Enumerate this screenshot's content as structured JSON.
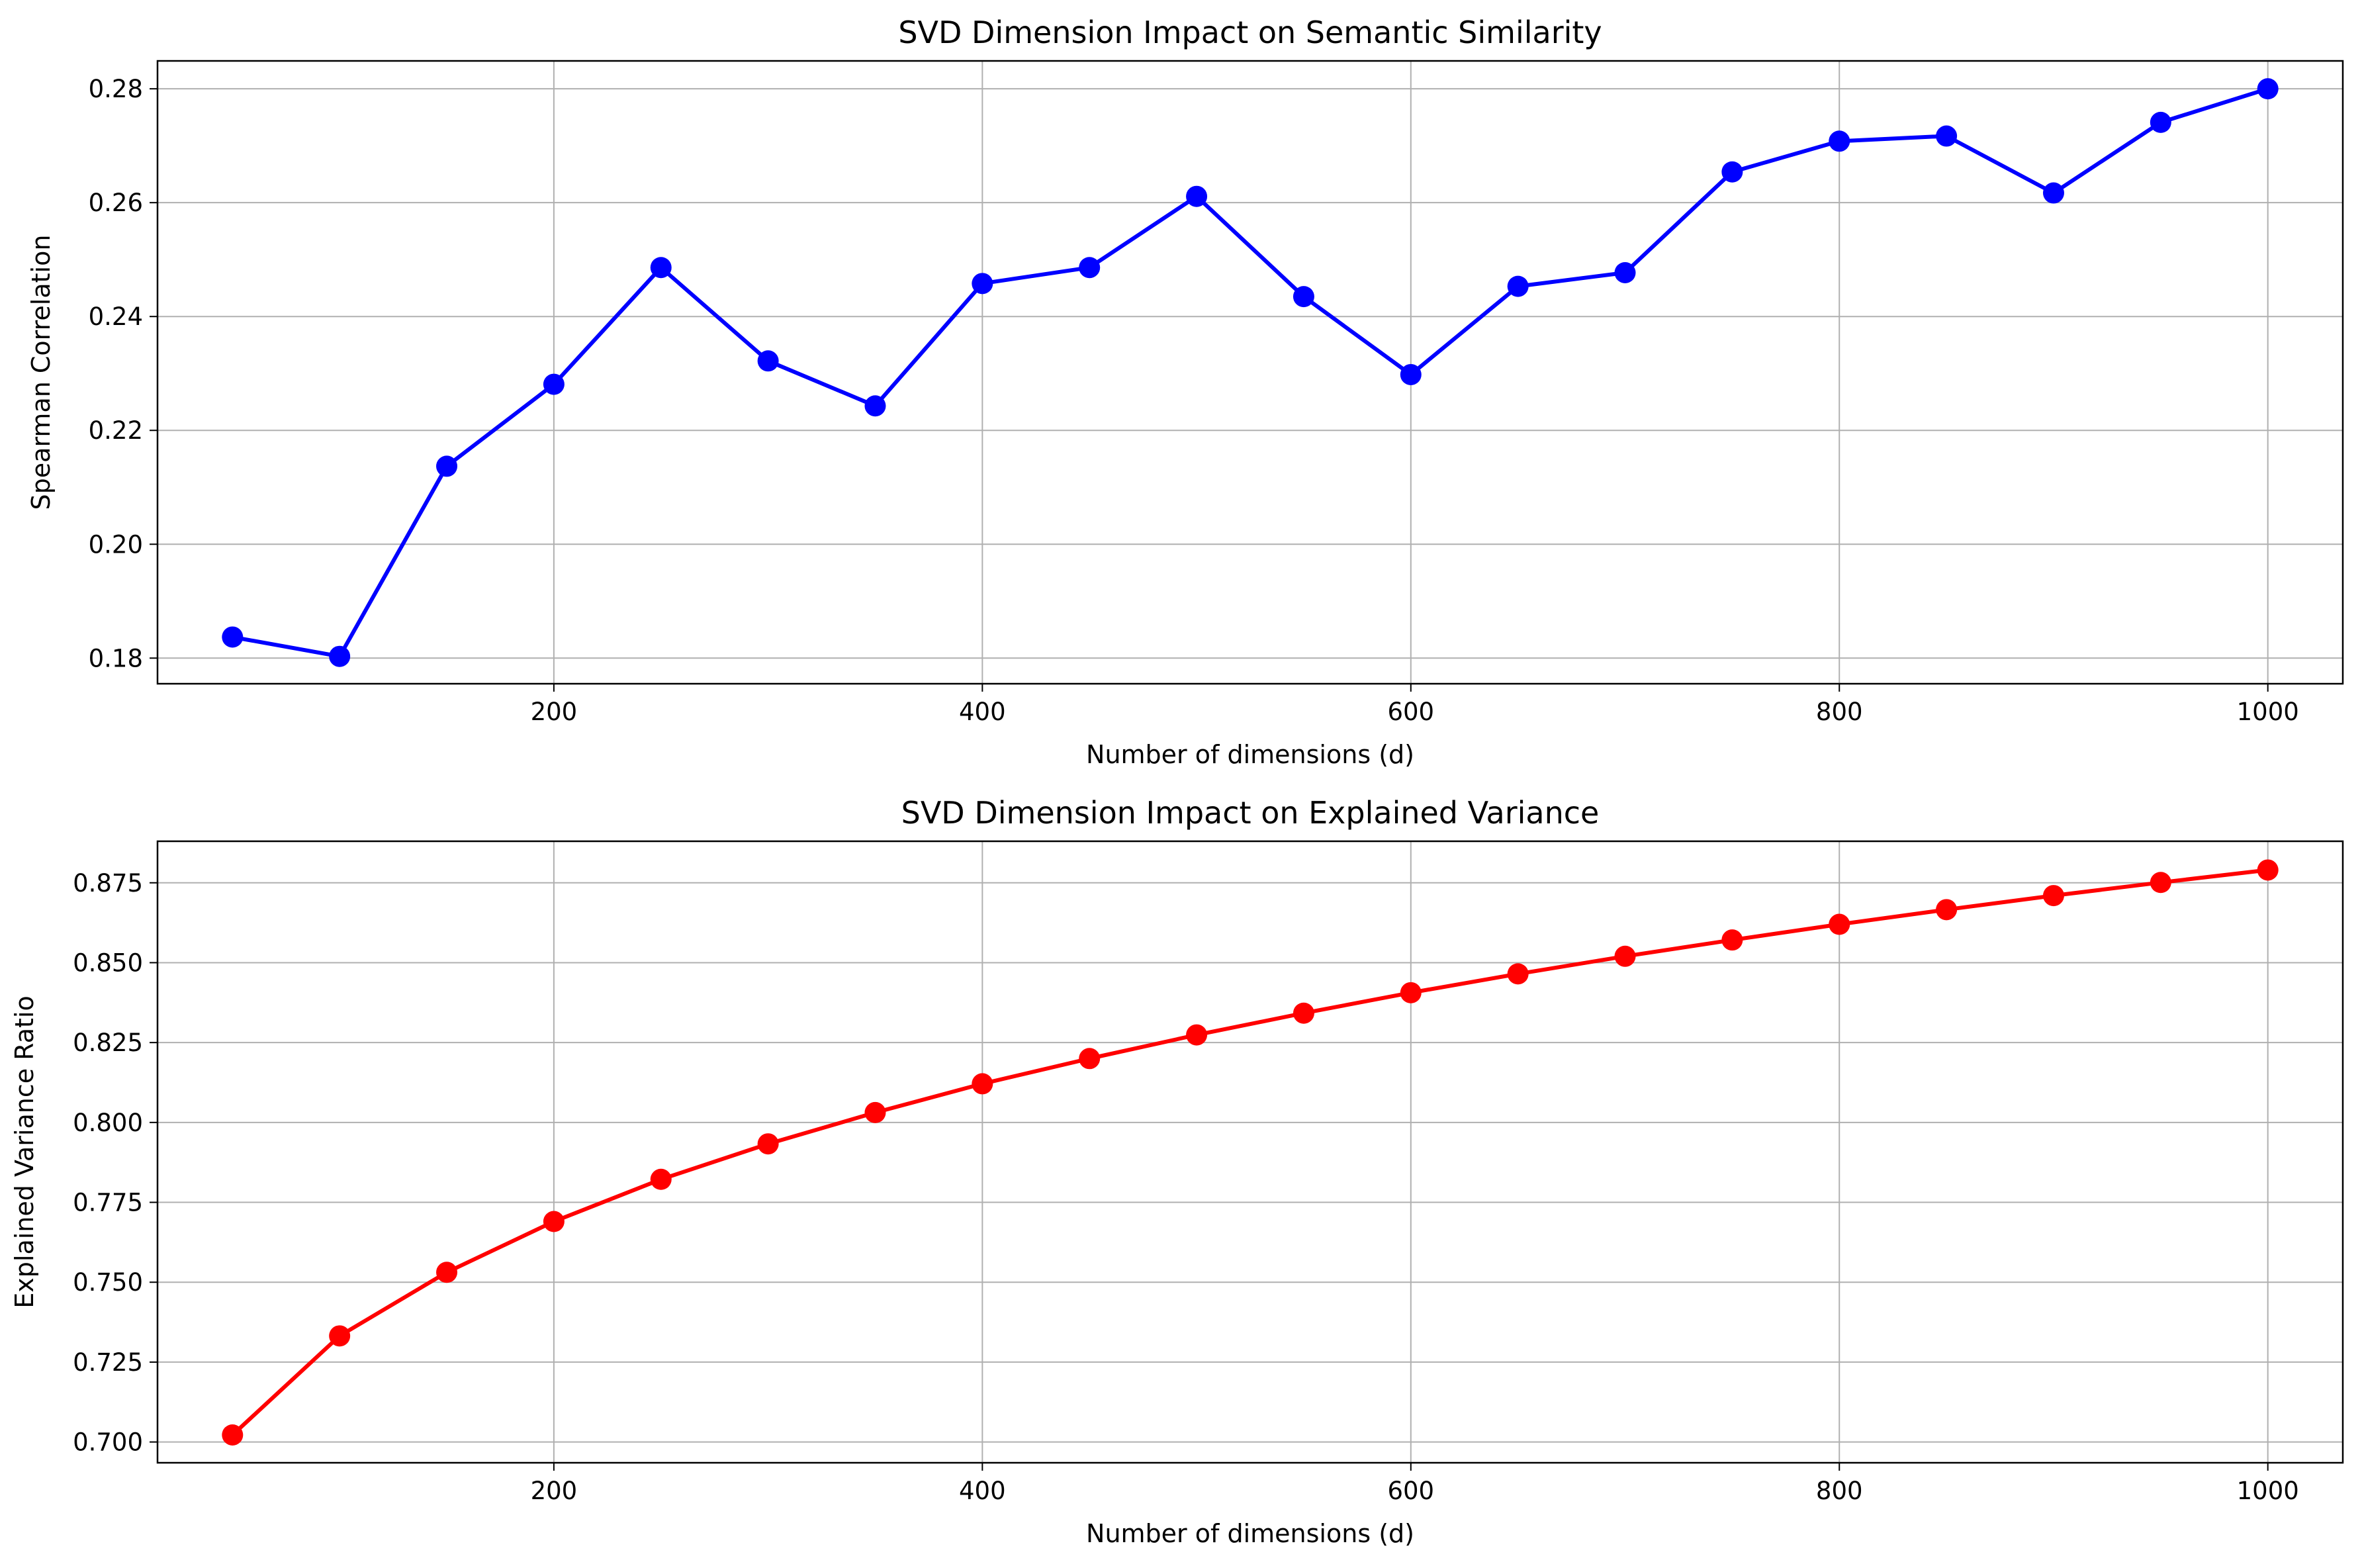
{
  "chart_data": [
    {
      "type": "line",
      "title": "SVD Dimension Impact on Semantic Similarity",
      "xlabel": "Number of dimensions (d)",
      "ylabel": "Spearman Correlation",
      "xlim": [
        15,
        1035
      ],
      "ylim": [
        0.1755,
        0.2849
      ],
      "xticks": [
        200,
        400,
        600,
        800,
        1000
      ],
      "yticks": [
        0.18,
        0.2,
        0.22,
        0.24,
        0.26,
        0.28
      ],
      "ytick_labels": [
        "0.18",
        "0.20",
        "0.22",
        "0.24",
        "0.26",
        "0.28"
      ],
      "grid": true,
      "color": "#0000ff",
      "series": [
        {
          "x": [
            50,
            100,
            150,
            200,
            250,
            300,
            350,
            400,
            450,
            500,
            550,
            600,
            650,
            700,
            750,
            800,
            850,
            900,
            950,
            1000
          ],
          "values": [
            0.1837,
            0.1803,
            0.2137,
            0.2281,
            0.2486,
            0.2322,
            0.2243,
            0.2458,
            0.2486,
            0.2611,
            0.2435,
            0.2298,
            0.2453,
            0.2477,
            0.2654,
            0.2708,
            0.2717,
            0.2617,
            0.2741,
            0.28
          ]
        }
      ]
    },
    {
      "type": "line",
      "title": "SVD Dimension Impact on Explained Variance",
      "xlabel": "Number of dimensions (d)",
      "ylabel": "Explained Variance Ratio",
      "xlim": [
        15,
        1035
      ],
      "ylim": [
        0.6935,
        0.888
      ],
      "xticks": [
        200,
        400,
        600,
        800,
        1000
      ],
      "yticks": [
        0.7,
        0.725,
        0.75,
        0.775,
        0.8,
        0.825,
        0.85,
        0.875
      ],
      "ytick_labels": [
        "0.700",
        "0.725",
        "0.750",
        "0.775",
        "0.800",
        "0.825",
        "0.850",
        "0.875"
      ],
      "grid": true,
      "color": "#ff0000",
      "series": [
        {
          "x": [
            50,
            100,
            150,
            200,
            250,
            300,
            350,
            400,
            450,
            500,
            550,
            600,
            650,
            700,
            750,
            800,
            850,
            900,
            950,
            1000
          ],
          "values": [
            0.7022,
            0.7332,
            0.7531,
            0.769,
            0.7822,
            0.7933,
            0.8031,
            0.8121,
            0.82,
            0.8274,
            0.8342,
            0.8406,
            0.8465,
            0.852,
            0.8571,
            0.862,
            0.8666,
            0.871,
            0.8751,
            0.879
          ]
        }
      ]
    }
  ]
}
